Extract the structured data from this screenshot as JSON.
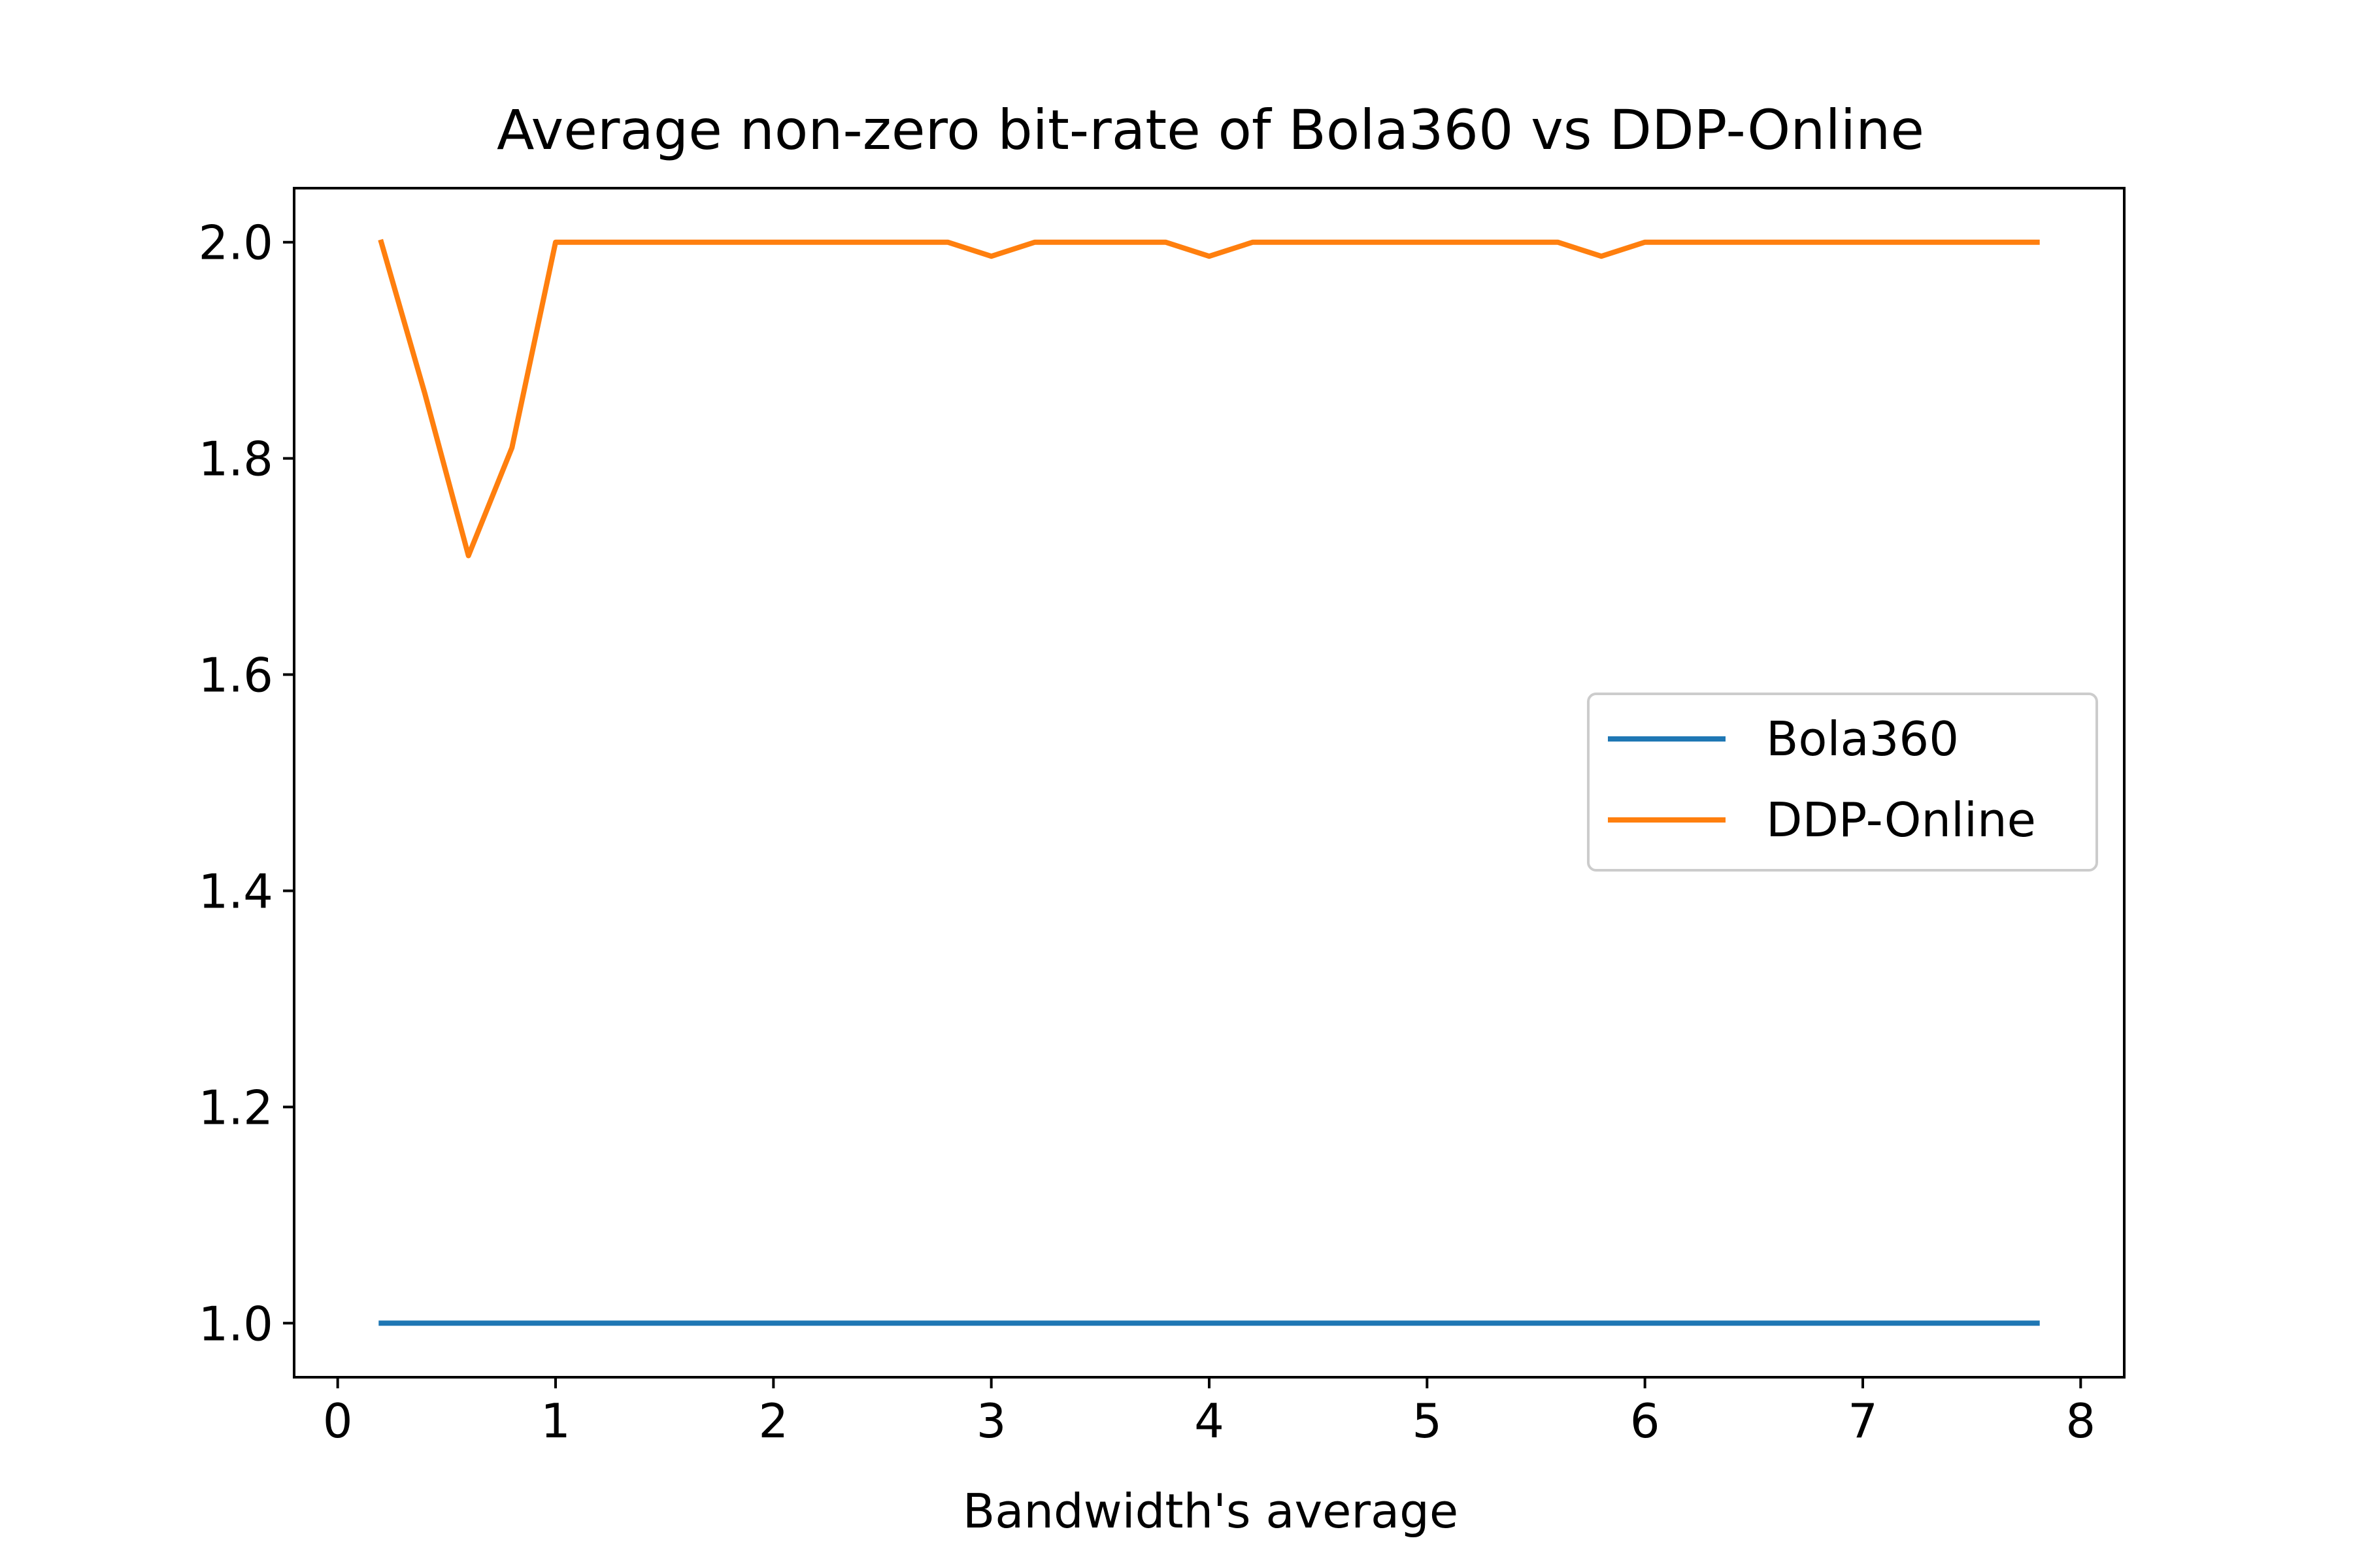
{
  "chart_data": {
    "type": "line",
    "title": "Average non-zero bit-rate of Bola360 vs DDP-Online",
    "xlabel": "Bandwidth's average",
    "ylabel": "",
    "xlim": [
      -0.2,
      8.2
    ],
    "ylim": [
      0.95,
      2.05
    ],
    "xticks": [
      0,
      1,
      2,
      3,
      4,
      5,
      6,
      7,
      8
    ],
    "xtick_labels": [
      "0",
      "1",
      "2",
      "3",
      "4",
      "5",
      "6",
      "7",
      "8"
    ],
    "yticks": [
      1.0,
      1.2,
      1.4,
      1.6,
      1.8,
      2.0
    ],
    "ytick_labels": [
      "1.0",
      "1.2",
      "1.4",
      "1.6",
      "1.8",
      "2.0"
    ],
    "grid": false,
    "legend_position": "center-right",
    "x": [
      0.2,
      0.4,
      0.6,
      0.8,
      1.0,
      1.2,
      1.4,
      1.6,
      1.8,
      2.0,
      2.2,
      2.4,
      2.6,
      2.8,
      3.0,
      3.2,
      3.4,
      3.6,
      3.8,
      4.0,
      4.2,
      4.4,
      4.6,
      4.8,
      5.0,
      5.2,
      5.4,
      5.6,
      5.8,
      6.0,
      6.2,
      6.4,
      6.6,
      6.8,
      7.0,
      7.2,
      7.4,
      7.6,
      7.8
    ],
    "series": [
      {
        "name": "Bola360",
        "color": "#1f77b4",
        "values": [
          1,
          1,
          1,
          1,
          1,
          1,
          1,
          1,
          1,
          1,
          1,
          1,
          1,
          1,
          1,
          1,
          1,
          1,
          1,
          1,
          1,
          1,
          1,
          1,
          1,
          1,
          1,
          1,
          1,
          1,
          1,
          1,
          1,
          1,
          1,
          1,
          1,
          1,
          1
        ]
      },
      {
        "name": "DDP-Online",
        "color": "#ff7f0e",
        "values": [
          2.0,
          1.86,
          1.71,
          1.81,
          2.0,
          2.0,
          2.0,
          2.0,
          2.0,
          2.0,
          2.0,
          2.0,
          2.0,
          2.0,
          1.987,
          2.0,
          2.0,
          2.0,
          2.0,
          1.987,
          2.0,
          2.0,
          2.0,
          2.0,
          2.0,
          2.0,
          2.0,
          2.0,
          1.987,
          2.0,
          2.0,
          2.0,
          2.0,
          2.0,
          2.0,
          2.0,
          2.0,
          2.0,
          2.0
        ]
      }
    ]
  }
}
